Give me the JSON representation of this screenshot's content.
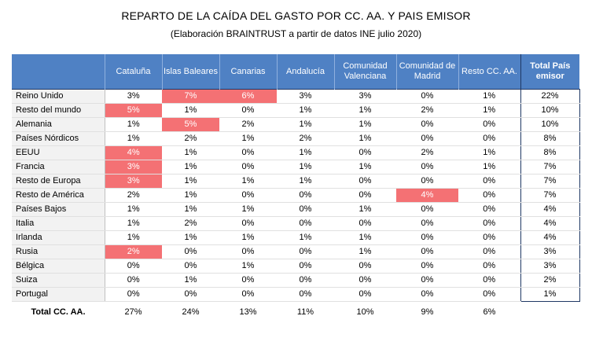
{
  "title": "REPARTO DE LA CAÍDA DEL GASTO POR CC. AA. Y PAIS EMISOR",
  "subtitle": "(Elaboración BRAINTRUST a partir de datos INE julio 2020)",
  "highlight_color": "#f47174",
  "header_color": "#4f81c4",
  "columns": [
    "Cataluña",
    "Islas Baleares",
    "Canarias",
    "Andalucía",
    "Comunidad Valenciana",
    "Comunidad de Madrid",
    "Resto CC. AA.",
    "Total País emisor"
  ],
  "rows": [
    {
      "label": "Reino Unido",
      "values": [
        "3%",
        "7%",
        "6%",
        "3%",
        "3%",
        "0%",
        "1%",
        "22%"
      ],
      "highlight": [
        false,
        true,
        true,
        false,
        false,
        false,
        false,
        false
      ]
    },
    {
      "label": "Resto del mundo",
      "values": [
        "5%",
        "1%",
        "0%",
        "1%",
        "1%",
        "2%",
        "1%",
        "10%"
      ],
      "highlight": [
        true,
        false,
        false,
        false,
        false,
        false,
        false,
        false
      ]
    },
    {
      "label": "Alemania",
      "values": [
        "1%",
        "5%",
        "2%",
        "1%",
        "1%",
        "0%",
        "0%",
        "10%"
      ],
      "highlight": [
        false,
        true,
        false,
        false,
        false,
        false,
        false,
        false
      ]
    },
    {
      "label": "Países Nórdicos",
      "values": [
        "1%",
        "2%",
        "1%",
        "2%",
        "1%",
        "0%",
        "0%",
        "8%"
      ],
      "highlight": [
        false,
        false,
        false,
        false,
        false,
        false,
        false,
        false
      ]
    },
    {
      "label": "EEUU",
      "values": [
        "4%",
        "1%",
        "0%",
        "1%",
        "0%",
        "2%",
        "1%",
        "8%"
      ],
      "highlight": [
        true,
        false,
        false,
        false,
        false,
        false,
        false,
        false
      ]
    },
    {
      "label": "Francia",
      "values": [
        "3%",
        "1%",
        "0%",
        "1%",
        "1%",
        "0%",
        "1%",
        "7%"
      ],
      "highlight": [
        true,
        false,
        false,
        false,
        false,
        false,
        false,
        false
      ]
    },
    {
      "label": "Resto de Europa",
      "values": [
        "3%",
        "1%",
        "1%",
        "1%",
        "0%",
        "0%",
        "0%",
        "7%"
      ],
      "highlight": [
        true,
        false,
        false,
        false,
        false,
        false,
        false,
        false
      ]
    },
    {
      "label": "Resto de América",
      "values": [
        "2%",
        "1%",
        "0%",
        "0%",
        "0%",
        "4%",
        "0%",
        "7%"
      ],
      "highlight": [
        false,
        false,
        false,
        false,
        false,
        true,
        false,
        false
      ]
    },
    {
      "label": "Países Bajos",
      "values": [
        "1%",
        "1%",
        "1%",
        "0%",
        "1%",
        "0%",
        "0%",
        "4%"
      ],
      "highlight": [
        false,
        false,
        false,
        false,
        false,
        false,
        false,
        false
      ]
    },
    {
      "label": "Italia",
      "values": [
        "1%",
        "2%",
        "0%",
        "0%",
        "0%",
        "0%",
        "0%",
        "4%"
      ],
      "highlight": [
        false,
        false,
        false,
        false,
        false,
        false,
        false,
        false
      ]
    },
    {
      "label": "Irlanda",
      "values": [
        "1%",
        "1%",
        "1%",
        "1%",
        "1%",
        "0%",
        "0%",
        "4%"
      ],
      "highlight": [
        false,
        false,
        false,
        false,
        false,
        false,
        false,
        false
      ]
    },
    {
      "label": "Rusia",
      "values": [
        "2%",
        "0%",
        "0%",
        "0%",
        "1%",
        "0%",
        "0%",
        "3%"
      ],
      "highlight": [
        true,
        false,
        false,
        false,
        false,
        false,
        false,
        false
      ]
    },
    {
      "label": "Bélgica",
      "values": [
        "0%",
        "0%",
        "1%",
        "0%",
        "0%",
        "0%",
        "0%",
        "3%"
      ],
      "highlight": [
        false,
        false,
        false,
        false,
        false,
        false,
        false,
        false
      ]
    },
    {
      "label": "Suiza",
      "values": [
        "0%",
        "1%",
        "0%",
        "0%",
        "0%",
        "0%",
        "0%",
        "2%"
      ],
      "highlight": [
        false,
        false,
        false,
        false,
        false,
        false,
        false,
        false
      ]
    },
    {
      "label": "Portugal",
      "values": [
        "0%",
        "0%",
        "0%",
        "0%",
        "0%",
        "0%",
        "0%",
        "1%"
      ],
      "highlight": [
        false,
        false,
        false,
        false,
        false,
        false,
        false,
        false
      ]
    }
  ],
  "total_row": {
    "label": "Total CC. AA.",
    "values": [
      "27%",
      "24%",
      "13%",
      "11%",
      "10%",
      "9%",
      "6%",
      ""
    ]
  }
}
